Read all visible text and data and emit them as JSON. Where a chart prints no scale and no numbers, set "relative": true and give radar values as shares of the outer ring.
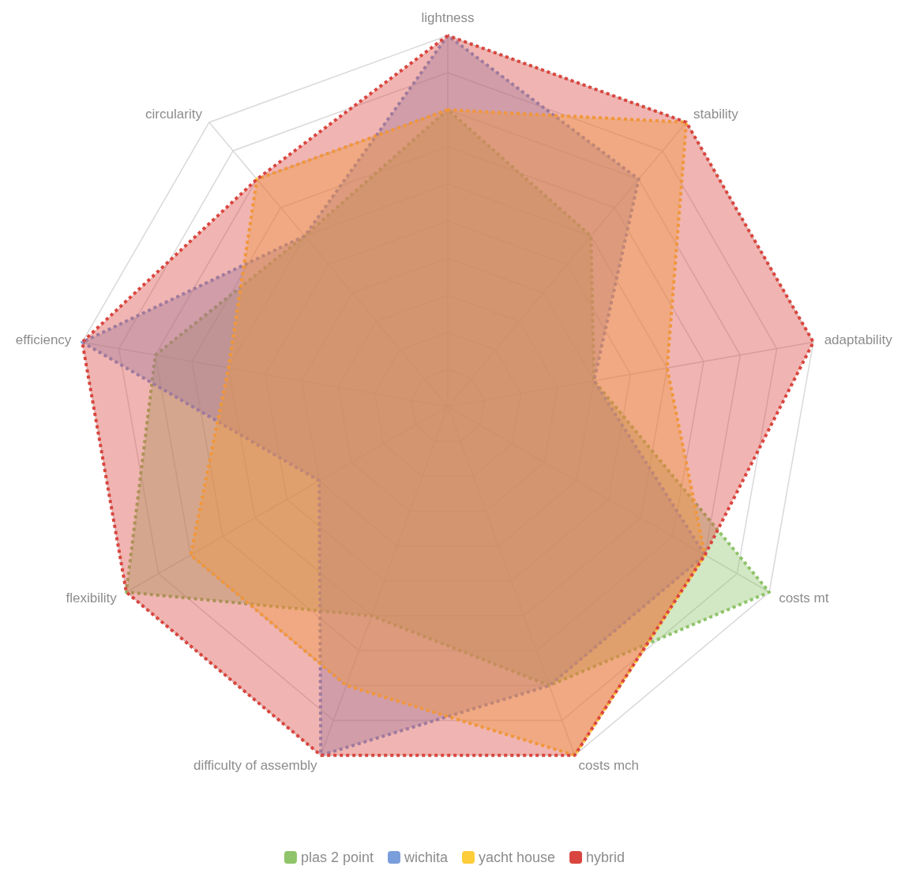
{
  "chart_data": {
    "type": "radar",
    "relative": true,
    "grid": true,
    "legend": "bottom",
    "marker": "none",
    "line_style": "dotted",
    "categories": [
      "lightness",
      "stability",
      "adaptability",
      "costs mt",
      "costs mch",
      "difficulty of assembly",
      "flexibility",
      "efficiency",
      "circularity"
    ],
    "series": [
      {
        "name": "plas 2 point",
        "color": "#8fc46a",
        "values": [
          0.8,
          0.6,
          0.4,
          1,
          0.8,
          0.6,
          1,
          0.8,
          0.6
        ]
      },
      {
        "name": "wichita",
        "color": "#7a9ddb",
        "values": [
          1,
          0.8,
          0.4,
          0.8,
          0.8,
          1,
          0.4,
          1,
          0.6
        ]
      },
      {
        "name": "yacht house",
        "color": "#ffcd3a",
        "values": [
          0.8,
          1,
          0.6,
          0.8,
          1,
          0.8,
          0.8,
          0.6,
          0.8
        ]
      },
      {
        "name": "hybrid",
        "color": "#d9463f",
        "values": [
          1,
          1,
          1,
          0.8,
          1,
          1,
          1,
          1,
          0.8
        ]
      }
    ]
  }
}
